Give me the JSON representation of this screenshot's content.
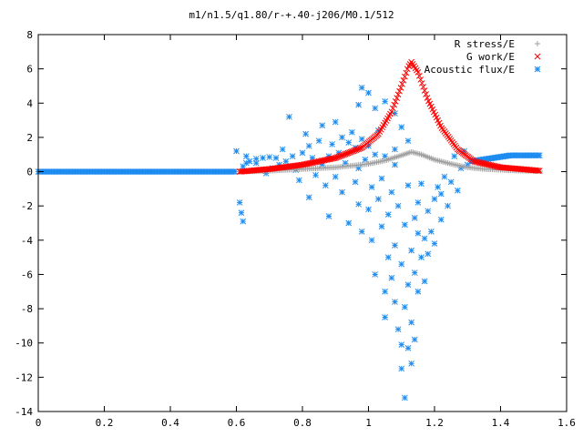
{
  "chart_data": {
    "type": "scatter",
    "title": "m1/n1.5/q1.80/r-+.40-j206/M0.1/512",
    "xlabel": "",
    "ylabel": "",
    "xlim": [
      0,
      1.6
    ],
    "ylim": [
      -14,
      8
    ],
    "x_ticks": [
      0,
      0.2,
      0.4,
      0.6,
      0.8,
      1,
      1.2,
      1.4,
      1.6
    ],
    "y_ticks": [
      -14,
      -12,
      -10,
      -8,
      -6,
      -4,
      -2,
      0,
      2,
      4,
      6,
      8
    ],
    "x_tick_labels": [
      "0",
      "0.2",
      "0.4",
      "0.6",
      "0.8",
      "1",
      "1.2",
      "1.4",
      "1.6"
    ],
    "y_tick_labels": [
      "-14",
      "-12",
      "-10",
      "-8",
      "-6",
      "-4",
      "-2",
      "0",
      "2",
      "4",
      "6",
      "8"
    ],
    "legend_position": "top-right",
    "grid": false,
    "series": [
      {
        "name": "R stress/E",
        "marker": "plus",
        "color": "#a0a0a0",
        "x_range": [
          0.61,
          1.52
        ],
        "description_points": [
          [
            0.61,
            0.0
          ],
          [
            0.7,
            0.05
          ],
          [
            0.8,
            0.15
          ],
          [
            0.9,
            0.25
          ],
          [
            1.0,
            0.45
          ],
          [
            1.05,
            0.65
          ],
          [
            1.1,
            0.95
          ],
          [
            1.13,
            1.15
          ],
          [
            1.16,
            1.0
          ],
          [
            1.2,
            0.7
          ],
          [
            1.25,
            0.45
          ],
          [
            1.3,
            0.25
          ],
          [
            1.35,
            0.15
          ],
          [
            1.45,
            0.06
          ],
          [
            1.52,
            0.03
          ]
        ]
      },
      {
        "name": "G work/E",
        "marker": "x",
        "color": "#ff0000",
        "x_range": [
          0.61,
          1.52
        ],
        "description_points": [
          [
            0.61,
            0.0
          ],
          [
            0.7,
            0.15
          ],
          [
            0.8,
            0.4
          ],
          [
            0.9,
            0.8
          ],
          [
            0.98,
            1.4
          ],
          [
            1.03,
            2.2
          ],
          [
            1.07,
            3.5
          ],
          [
            1.1,
            5.0
          ],
          [
            1.12,
            6.1
          ],
          [
            1.13,
            6.4
          ],
          [
            1.15,
            5.8
          ],
          [
            1.18,
            4.2
          ],
          [
            1.22,
            2.6
          ],
          [
            1.27,
            1.3
          ],
          [
            1.32,
            0.6
          ],
          [
            1.4,
            0.25
          ],
          [
            1.52,
            0.05
          ]
        ]
      },
      {
        "name": "Acoustic flux/E",
        "marker": "star",
        "color": "#1e8cf0"
      }
    ],
    "acoustic_flat_left": {
      "x_start": 0.0,
      "x_end": 0.6,
      "y": 0.0
    },
    "acoustic_flat_right": {
      "x_start": 1.31,
      "x_end": 1.52,
      "y_start": 0.6,
      "y_end": 0.95
    },
    "acoustic_scatter": [
      [
        0.6,
        1.2
      ],
      [
        0.61,
        -1.8
      ],
      [
        0.615,
        -2.4
      ],
      [
        0.62,
        -2.9
      ],
      [
        0.62,
        0.3
      ],
      [
        0.63,
        0.5
      ],
      [
        0.64,
        0.6
      ],
      [
        0.66,
        0.75
      ],
      [
        0.68,
        0.8
      ],
      [
        0.7,
        0.85
      ],
      [
        0.72,
        0.8
      ],
      [
        0.71,
        0.2
      ],
      [
        0.73,
        0.4
      ],
      [
        0.74,
        1.3
      ],
      [
        0.75,
        0.6
      ],
      [
        0.76,
        3.2
      ],
      [
        0.77,
        0.9
      ],
      [
        0.78,
        0.1
      ],
      [
        0.79,
        -0.5
      ],
      [
        0.8,
        1.1
      ],
      [
        0.81,
        2.2
      ],
      [
        0.82,
        1.5
      ],
      [
        0.82,
        -1.5
      ],
      [
        0.83,
        0.8
      ],
      [
        0.84,
        -0.2
      ],
      [
        0.85,
        1.8
      ],
      [
        0.86,
        0.4
      ],
      [
        0.86,
        2.7
      ],
      [
        0.87,
        -0.8
      ],
      [
        0.88,
        0.9
      ],
      [
        0.88,
        -2.6
      ],
      [
        0.89,
        1.6
      ],
      [
        0.9,
        2.9
      ],
      [
        0.9,
        -0.3
      ],
      [
        0.91,
        1.1
      ],
      [
        0.92,
        2.0
      ],
      [
        0.92,
        -1.2
      ],
      [
        0.93,
        0.5
      ],
      [
        0.94,
        1.7
      ],
      [
        0.94,
        -3.0
      ],
      [
        0.95,
        2.3
      ],
      [
        0.96,
        -0.6
      ],
      [
        0.96,
        1.4
      ],
      [
        0.97,
        0.2
      ],
      [
        0.97,
        -1.9
      ],
      [
        0.98,
        1.9
      ],
      [
        0.98,
        -3.5
      ],
      [
        0.99,
        0.7
      ],
      [
        1.0,
        -2.2
      ],
      [
        1.0,
        1.5
      ],
      [
        1.01,
        -4.0
      ],
      [
        1.01,
        -0.9
      ],
      [
        1.02,
        1.0
      ],
      [
        1.02,
        -6.0
      ],
      [
        1.03,
        -1.6
      ],
      [
        1.03,
        2.4
      ],
      [
        1.04,
        -0.4
      ],
      [
        1.04,
        -3.2
      ],
      [
        1.05,
        -7.0
      ],
      [
        1.05,
        -8.5
      ],
      [
        1.05,
        0.9
      ],
      [
        1.06,
        -2.5
      ],
      [
        1.06,
        -5.0
      ],
      [
        1.07,
        -1.2
      ],
      [
        1.07,
        -6.2
      ],
      [
        1.08,
        0.4
      ],
      [
        1.08,
        -4.3
      ],
      [
        1.08,
        -7.6
      ],
      [
        1.09,
        -2.0
      ],
      [
        1.09,
        -9.2
      ],
      [
        1.1,
        -10.1
      ],
      [
        1.1,
        -5.4
      ],
      [
        1.1,
        -11.5
      ],
      [
        1.11,
        -3.1
      ],
      [
        1.11,
        -7.9
      ],
      [
        1.11,
        -13.2
      ],
      [
        1.12,
        -0.8
      ],
      [
        1.12,
        -6.6
      ],
      [
        1.12,
        -10.3
      ],
      [
        1.13,
        -4.6
      ],
      [
        1.13,
        -8.8
      ],
      [
        1.13,
        -11.2
      ],
      [
        1.14,
        -2.7
      ],
      [
        1.14,
        -9.8
      ],
      [
        1.14,
        -5.9
      ],
      [
        1.15,
        -1.8
      ],
      [
        1.15,
        -7.0
      ],
      [
        1.15,
        -3.6
      ],
      [
        1.16,
        -5.0
      ],
      [
        1.16,
        -0.7
      ],
      [
        1.17,
        -6.4
      ],
      [
        1.17,
        -3.9
      ],
      [
        1.18,
        -4.8
      ],
      [
        1.18,
        -2.3
      ],
      [
        1.19,
        -3.5
      ],
      [
        1.2,
        -1.6
      ],
      [
        1.2,
        -4.2
      ],
      [
        1.21,
        -0.9
      ],
      [
        1.22,
        -2.8
      ],
      [
        1.22,
        -1.3
      ],
      [
        1.23,
        -0.3
      ],
      [
        1.24,
        -2.0
      ],
      [
        1.25,
        -0.6
      ],
      [
        1.26,
        0.9
      ],
      [
        1.27,
        -1.1
      ],
      [
        1.28,
        0.2
      ],
      [
        1.29,
        1.2
      ],
      [
        1.3,
        0.4
      ],
      [
        0.98,
        4.9
      ],
      [
        1.0,
        4.6
      ],
      [
        1.05,
        4.1
      ],
      [
        1.08,
        3.4
      ],
      [
        1.02,
        3.7
      ],
      [
        0.97,
        3.9
      ],
      [
        1.1,
        2.6
      ],
      [
        1.12,
        1.8
      ],
      [
        1.08,
        1.3
      ],
      [
        0.66,
        0.5
      ],
      [
        0.69,
        -0.1
      ],
      [
        0.63,
        0.9
      ]
    ]
  }
}
